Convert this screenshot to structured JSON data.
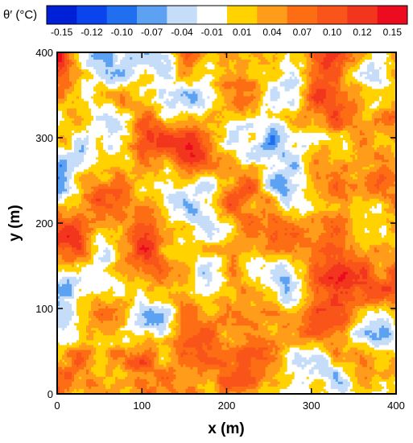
{
  "chart_data": {
    "type": "heatmap",
    "colorbar": {
      "title": "θ′ (°C)",
      "tick_labels": [
        "-0.15",
        "-0.12",
        "-0.10",
        "-0.07",
        "-0.04",
        "-0.01",
        "0.01",
        "0.04",
        "0.07",
        "0.10",
        "0.12",
        "0.15"
      ],
      "colors": [
        "#0020d8",
        "#0a44ec",
        "#1f6ff0",
        "#5da2f2",
        "#c5ddf8",
        "#ffffff",
        "#ffd200",
        "#ff9c1a",
        "#fd6e14",
        "#f9541a",
        "#f2361e",
        "#ec0b1f"
      ]
    },
    "xlabel": "x (m)",
    "ylabel": "y (m)",
    "xlim": [
      0,
      400
    ],
    "ylim": [
      0,
      400
    ],
    "xticks": [
      0,
      100,
      200,
      300,
      400
    ],
    "yticks": [
      0,
      100,
      200,
      300,
      400
    ],
    "x_tick_labels": [
      "0",
      "100",
      "200",
      "300",
      "400"
    ],
    "y_tick_labels": [
      "0",
      "100",
      "200",
      "300",
      "400"
    ],
    "field_value_range": [
      -0.15,
      0.15
    ]
  }
}
